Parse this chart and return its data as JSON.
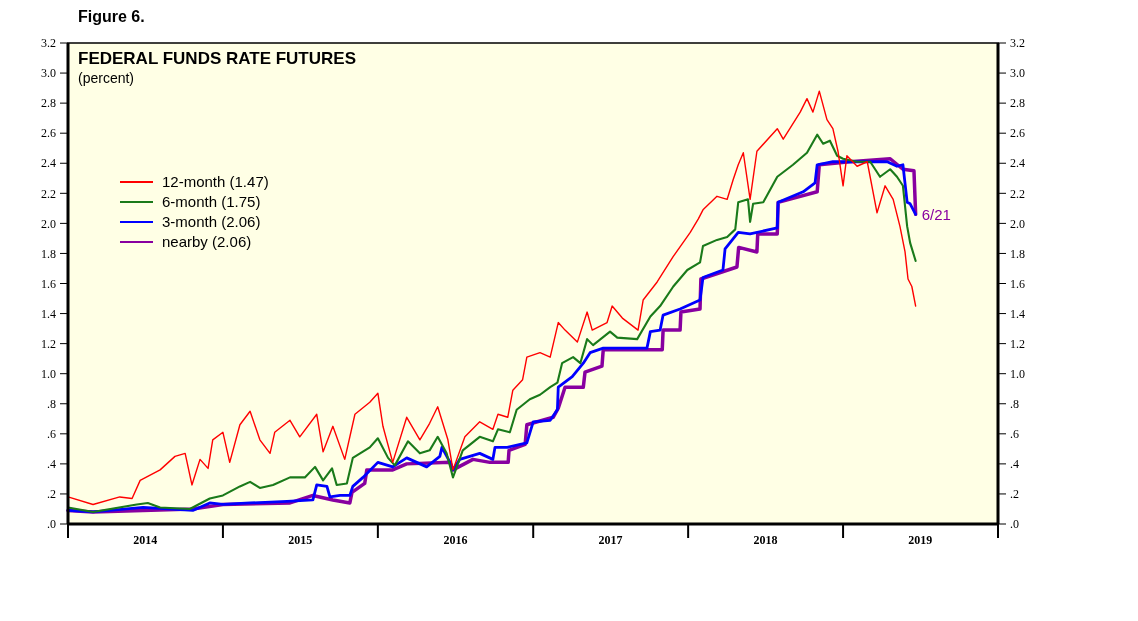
{
  "chart_data": {
    "type": "line",
    "title": "FEDERAL FUNDS RATE FUTURES",
    "subtitle": "(percent)",
    "annotations": [
      "Figure 6.",
      {
        "text": "6/21",
        "x": "2019-06-21",
        "y": 2.06
      }
    ],
    "legend": "top left",
    "grid": false,
    "xlim": [
      "2014-01-01",
      "2020-01-01"
    ],
    "xticks": [
      {
        "value": "2014-01-01",
        "label": null
      },
      {
        "value": "2014-07-02",
        "label": "2014"
      },
      {
        "value": "2015-01-01",
        "label": null
      },
      {
        "value": "2015-07-02",
        "label": "2015"
      },
      {
        "value": "2016-01-01",
        "label": null
      },
      {
        "value": "2016-07-02",
        "label": "2016"
      },
      {
        "value": "2017-01-01",
        "label": null
      },
      {
        "value": "2017-07-02",
        "label": "2017"
      },
      {
        "value": "2018-01-01",
        "label": null
      },
      {
        "value": "2018-07-02",
        "label": "2018"
      },
      {
        "value": "2019-01-01",
        "label": null
      },
      {
        "value": "2019-07-02",
        "label": "2019"
      },
      {
        "value": "2020-01-01",
        "label": null
      }
    ],
    "ylim": [
      0,
      3.2
    ],
    "yticks": [
      {
        "value": 0,
        "label": ".0"
      },
      {
        "value": 0.2,
        "label": ".2"
      },
      {
        "value": 0.4,
        "label": ".4"
      },
      {
        "value": 0.6,
        "label": ".6"
      },
      {
        "value": 0.8,
        "label": ".8"
      },
      {
        "value": 1,
        "label": "1.0"
      },
      1.2,
      1.4,
      1.6,
      1.8,
      {
        "value": 2,
        "label": "2.0"
      },
      2.2,
      2.4,
      2.6,
      2.8,
      {
        "value": 3,
        "label": "3.0"
      },
      3.2
    ],
    "y2lim": [
      0,
      3.2
    ],
    "y2ticks": [
      {
        "value": 0,
        "label": ".0"
      },
      {
        "value": 0.2,
        "label": ".2"
      },
      {
        "value": 0.4,
        "label": ".4"
      },
      {
        "value": 0.6,
        "label": ".6"
      },
      {
        "value": 0.8,
        "label": ".8"
      },
      {
        "value": 1,
        "label": "1.0"
      },
      1.2,
      1.4,
      1.6,
      1.8,
      {
        "value": 2,
        "label": "2.0"
      },
      2.2,
      2.4,
      2.6,
      2.8,
      {
        "value": 3,
        "label": "3.0"
      },
      3.2
    ],
    "series": [
      {
        "name": "12-month (1.47)",
        "color": "#ff0000",
        "x": [
          "2014-01-01",
          "2014-03-01",
          "2014-05-03",
          "2014-06-01",
          "2014-06-20",
          "2014-08-06",
          "2014-09-10",
          "2014-10-04",
          "2014-10-20",
          "2014-11-08",
          "2014-11-27",
          "2014-12-08",
          "2015-01-01",
          "2015-01-17",
          "2015-02-10",
          "2015-03-06",
          "2015-03-29",
          "2015-04-22",
          "2015-05-03",
          "2015-06-08",
          "2015-07-01",
          "2015-08-10",
          "2015-08-25",
          "2015-09-17",
          "2015-10-15",
          "2015-11-08",
          "2015-12-13",
          "2016-01-01",
          "2016-01-13",
          "2016-02-05",
          "2016-03-09",
          "2016-04-09",
          "2016-05-02",
          "2016-05-21",
          "2016-06-14",
          "2016-06-26",
          "2016-07-24",
          "2016-08-28",
          "2016-09-28",
          "2016-10-10",
          "2016-11-02",
          "2016-11-14",
          "2016-12-07",
          "2016-12-17",
          "2017-01-17",
          "2017-02-10",
          "2017-03-01",
          "2017-03-17",
          "2017-04-15",
          "2017-05-08",
          "2017-05-20",
          "2017-06-24",
          "2017-07-06",
          "2017-07-30",
          "2017-09-05",
          "2017-09-17",
          "2017-10-20",
          "2017-11-27",
          "2018-01-06",
          "2018-01-25",
          "2018-02-05",
          "2018-03-10",
          "2018-04-03",
          "2018-04-17",
          "2018-04-29",
          "2018-05-11",
          "2018-05-27",
          "2018-06-12",
          "2018-07-30",
          "2018-08-13",
          "2018-09-22",
          "2018-10-08",
          "2018-10-22",
          "2018-11-06",
          "2018-11-24",
          "2018-12-08",
          "2018-12-20",
          "2019-01-01",
          "2019-01-10",
          "2019-02-03",
          "2019-02-27",
          "2019-03-22",
          "2019-04-10",
          "2019-04-29",
          "2019-05-15",
          "2019-05-27",
          "2019-06-03",
          "2019-06-12",
          "2019-06-21"
        ],
        "values": [
          0.18,
          0.13,
          0.18,
          0.17,
          0.29,
          0.36,
          0.45,
          0.47,
          0.26,
          0.43,
          0.37,
          0.56,
          0.61,
          0.41,
          0.66,
          0.75,
          0.56,
          0.47,
          0.61,
          0.69,
          0.58,
          0.73,
          0.48,
          0.65,
          0.43,
          0.73,
          0.81,
          0.87,
          0.65,
          0.41,
          0.71,
          0.56,
          0.67,
          0.78,
          0.56,
          0.36,
          0.58,
          0.68,
          0.63,
          0.73,
          0.71,
          0.89,
          0.96,
          1.11,
          1.14,
          1.11,
          1.34,
          1.29,
          1.21,
          1.41,
          1.29,
          1.34,
          1.45,
          1.37,
          1.29,
          1.49,
          1.61,
          1.78,
          1.94,
          2.03,
          2.09,
          2.18,
          2.16,
          2.29,
          2.39,
          2.47,
          2.16,
          2.48,
          2.63,
          2.56,
          2.74,
          2.83,
          2.74,
          2.88,
          2.69,
          2.63,
          2.48,
          2.25,
          2.45,
          2.38,
          2.41,
          2.07,
          2.25,
          2.16,
          1.98,
          1.81,
          1.63,
          1.58,
          1.45
        ]
      },
      {
        "name": "6-month (1.75)",
        "color": "#1a7a1a",
        "x": [
          "2014-01-01",
          "2014-03-01",
          "2014-06-12",
          "2014-07-08",
          "2014-08-06",
          "2014-10-15",
          "2014-12-01",
          "2015-01-01",
          "2015-02-10",
          "2015-03-06",
          "2015-03-29",
          "2015-04-29",
          "2015-06-08",
          "2015-07-13",
          "2015-08-06",
          "2015-08-25",
          "2015-09-15",
          "2015-09-26",
          "2015-10-20",
          "2015-11-03",
          "2015-12-13",
          "2016-01-01",
          "2016-01-25",
          "2016-02-10",
          "2016-03-12",
          "2016-04-09",
          "2016-05-02",
          "2016-05-21",
          "2016-06-11",
          "2016-06-26",
          "2016-07-19",
          "2016-08-28",
          "2016-09-28",
          "2016-10-10",
          "2016-11-07",
          "2016-11-23",
          "2016-12-24",
          "2017-01-17",
          "2017-02-10",
          "2017-02-27",
          "2017-03-10",
          "2017-04-05",
          "2017-04-22",
          "2017-05-08",
          "2017-05-22",
          "2017-07-01",
          "2017-07-18",
          "2017-09-03",
          "2017-10-04",
          "2017-10-27",
          "2017-11-27",
          "2017-12-30",
          "2018-01-29",
          "2018-02-05",
          "2018-03-10",
          "2018-04-03",
          "2018-04-22",
          "2018-04-29",
          "2018-05-22",
          "2018-05-27",
          "2018-06-03",
          "2018-06-27",
          "2018-07-30",
          "2018-09-05",
          "2018-10-08",
          "2018-11-01",
          "2018-11-15",
          "2018-12-01",
          "2018-12-18",
          "2019-01-01",
          "2019-02-03",
          "2019-03-06",
          "2019-03-29",
          "2019-04-22",
          "2019-05-08",
          "2019-05-22",
          "2019-06-01",
          "2019-06-08",
          "2019-06-21"
        ],
        "values": [
          0.11,
          0.08,
          0.13,
          0.14,
          0.11,
          0.1,
          0.17,
          0.19,
          0.25,
          0.28,
          0.24,
          0.26,
          0.31,
          0.31,
          0.38,
          0.29,
          0.37,
          0.26,
          0.27,
          0.44,
          0.51,
          0.57,
          0.44,
          0.39,
          0.55,
          0.47,
          0.49,
          0.58,
          0.47,
          0.31,
          0.49,
          0.58,
          0.55,
          0.63,
          0.61,
          0.76,
          0.83,
          0.86,
          0.91,
          0.94,
          1.07,
          1.11,
          1.07,
          1.23,
          1.19,
          1.28,
          1.24,
          1.23,
          1.38,
          1.45,
          1.58,
          1.69,
          1.74,
          1.85,
          1.89,
          1.91,
          1.96,
          2.14,
          2.16,
          2.01,
          2.13,
          2.14,
          2.31,
          2.39,
          2.47,
          2.59,
          2.53,
          2.55,
          2.45,
          2.43,
          2.41,
          2.41,
          2.31,
          2.36,
          2.31,
          2.25,
          1.98,
          1.87,
          1.75
        ]
      },
      {
        "name": "3-month (2.06)",
        "color": "#0000ff",
        "x": [
          "2014-01-01",
          "2014-03-01",
          "2014-06-27",
          "2014-10-22",
          "2014-12-01",
          "2015-01-01",
          "2015-03-06",
          "2015-06-01",
          "2015-08-01",
          "2015-08-10",
          "2015-09-03",
          "2015-09-10",
          "2015-10-04",
          "2015-10-27",
          "2015-11-03",
          "2015-11-27",
          "2016-01-01",
          "2016-02-05",
          "2016-03-09",
          "2016-04-25",
          "2016-05-26",
          "2016-05-31",
          "2016-06-19",
          "2016-06-26",
          "2016-07-12",
          "2016-08-28",
          "2016-09-28",
          "2016-10-03",
          "2016-11-01",
          "2016-12-17",
          "2017-01-01",
          "2017-02-10",
          "2017-02-27",
          "2017-03-01",
          "2017-04-03",
          "2017-04-29",
          "2017-05-15",
          "2017-06-15",
          "2017-09-26",
          "2017-10-04",
          "2017-10-27",
          "2017-11-03",
          "2017-12-13",
          "2018-01-29",
          "2018-02-05",
          "2018-03-24",
          "2018-03-29",
          "2018-04-29",
          "2018-05-27",
          "2018-07-30",
          "2018-08-01",
          "2018-09-29",
          "2018-10-27",
          "2018-11-01",
          "2018-12-08",
          "2019-04-15",
          "2019-05-08",
          "2019-05-22",
          "2019-06-01",
          "2019-06-08",
          "2019-06-21"
        ],
        "values": [
          0.09,
          0.08,
          0.11,
          0.09,
          0.14,
          0.13,
          0.14,
          0.15,
          0.16,
          0.26,
          0.25,
          0.18,
          0.19,
          0.19,
          0.25,
          0.31,
          0.41,
          0.38,
          0.44,
          0.38,
          0.45,
          0.51,
          0.41,
          0.36,
          0.43,
          0.47,
          0.43,
          0.51,
          0.51,
          0.54,
          0.68,
          0.69,
          0.76,
          0.91,
          0.98,
          1.07,
          1.14,
          1.17,
          1.17,
          1.28,
          1.29,
          1.39,
          1.43,
          1.49,
          1.64,
          1.69,
          1.83,
          1.94,
          1.93,
          1.97,
          2.14,
          2.21,
          2.27,
          2.39,
          2.41,
          2.41,
          2.38,
          2.39,
          2.14,
          2.13,
          2.06
        ]
      },
      {
        "name": "nearby (2.06)",
        "color": "#8800a0",
        "x": [
          "2014-01-01",
          "2014-03-01",
          "2014-10-22",
          "2015-01-01",
          "2015-06-08",
          "2015-08-01",
          "2015-09-17",
          "2015-10-27",
          "2015-11-01",
          "2015-12-01",
          "2015-12-06",
          "2016-02-05",
          "2016-03-09",
          "2016-06-19",
          "2016-06-26",
          "2016-08-12",
          "2016-09-21",
          "2016-11-03",
          "2016-11-05",
          "2016-12-13",
          "2016-12-17",
          "2017-02-17",
          "2017-03-01",
          "2017-03-17",
          "2017-04-29",
          "2017-05-03",
          "2017-06-12",
          "2017-06-15",
          "2017-11-01",
          "2017-11-03",
          "2017-12-13",
          "2017-12-15",
          "2018-01-29",
          "2018-01-31",
          "2018-04-26",
          "2018-04-30",
          "2018-06-12",
          "2018-06-14",
          "2018-07-30",
          "2018-08-01",
          "2018-11-01",
          "2018-11-06",
          "2019-01-17",
          "2019-04-22",
          "2019-05-22",
          "2019-06-17",
          "2019-06-21"
        ],
        "values": [
          0.09,
          0.08,
          0.1,
          0.13,
          0.14,
          0.19,
          0.16,
          0.14,
          0.21,
          0.27,
          0.36,
          0.36,
          0.4,
          0.41,
          0.36,
          0.43,
          0.41,
          0.41,
          0.49,
          0.53,
          0.66,
          0.71,
          0.77,
          0.91,
          0.91,
          1.01,
          1.05,
          1.16,
          1.16,
          1.29,
          1.29,
          1.41,
          1.43,
          1.63,
          1.71,
          1.84,
          1.81,
          1.93,
          1.93,
          2.14,
          2.21,
          2.39,
          2.41,
          2.43,
          2.36,
          2.35,
          2.06
        ]
      }
    ]
  }
}
